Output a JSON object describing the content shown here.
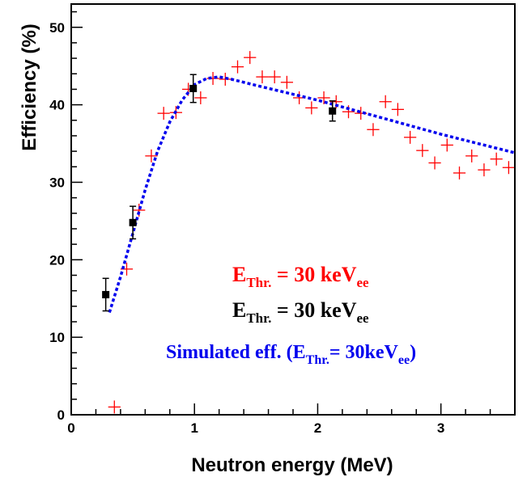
{
  "chart_data": {
    "type": "scatter",
    "xlabel": "Neutron energy (MeV)",
    "ylabel": "Efficiency (%)",
    "xlim": [
      0,
      3.6
    ],
    "ylim": [
      0,
      53
    ],
    "x_ticks": [
      "0",
      "1",
      "2",
      "3"
    ],
    "y_ticks": [
      "0",
      "10",
      "20",
      "30",
      "40",
      "50"
    ],
    "grid": false,
    "legend_position": "lower-right",
    "series": [
      {
        "legend": {
          "main": "E",
          "sub": "Thr.",
          "mid": " = 30 keV",
          "sub2": "ee"
        },
        "marker": "cross",
        "color": "#ff0000",
        "points": [
          {
            "x": 0.35,
            "y": 1.0
          },
          {
            "x": 0.45,
            "y": 18.8
          },
          {
            "x": 0.55,
            "y": 26.4
          },
          {
            "x": 0.65,
            "y": 33.4
          },
          {
            "x": 0.75,
            "y": 38.9
          },
          {
            "x": 0.85,
            "y": 39.0
          },
          {
            "x": 0.95,
            "y": 42.0
          },
          {
            "x": 1.05,
            "y": 40.9
          },
          {
            "x": 1.15,
            "y": 43.4
          },
          {
            "x": 1.25,
            "y": 43.3
          },
          {
            "x": 1.35,
            "y": 44.9
          },
          {
            "x": 1.45,
            "y": 46.1
          },
          {
            "x": 1.55,
            "y": 43.6
          },
          {
            "x": 1.65,
            "y": 43.6
          },
          {
            "x": 1.75,
            "y": 42.9
          },
          {
            "x": 1.85,
            "y": 40.9
          },
          {
            "x": 1.95,
            "y": 39.6
          },
          {
            "x": 2.05,
            "y": 40.9
          },
          {
            "x": 2.15,
            "y": 40.4
          },
          {
            "x": 2.25,
            "y": 39.1
          },
          {
            "x": 2.35,
            "y": 38.9
          },
          {
            "x": 2.45,
            "y": 36.8
          },
          {
            "x": 2.55,
            "y": 40.4
          },
          {
            "x": 2.65,
            "y": 39.4
          },
          {
            "x": 2.75,
            "y": 35.8
          },
          {
            "x": 2.85,
            "y": 34.1
          },
          {
            "x": 2.95,
            "y": 32.5
          },
          {
            "x": 3.05,
            "y": 34.8
          },
          {
            "x": 3.15,
            "y": 31.2
          },
          {
            "x": 3.25,
            "y": 33.4
          },
          {
            "x": 3.35,
            "y": 31.6
          },
          {
            "x": 3.45,
            "y": 33.0
          },
          {
            "x": 3.55,
            "y": 31.9
          }
        ]
      },
      {
        "legend": {
          "main": "E",
          "sub": "Thr.",
          "mid": " = 30 keV",
          "sub2": "ee"
        },
        "marker": "square-errorbar",
        "color": "#000000",
        "points": [
          {
            "x": 0.28,
            "y": 15.5,
            "err": 2.1
          },
          {
            "x": 0.5,
            "y": 24.8,
            "err": 2.1
          },
          {
            "x": 0.99,
            "y": 42.1,
            "err": 1.8
          },
          {
            "x": 2.12,
            "y": 39.2,
            "err": 1.3
          }
        ]
      },
      {
        "legend": {
          "main": "Simulated eff. (E",
          "sub": "Thr.",
          "mid": "= 30keV",
          "sub2": "ee",
          "end": ")"
        },
        "marker": "dashed-line",
        "color": "#0000ee",
        "points": [
          {
            "x": 0.31,
            "y": 13.2
          },
          {
            "x": 0.4,
            "y": 17.8
          },
          {
            "x": 0.5,
            "y": 23.4
          },
          {
            "x": 0.6,
            "y": 29.0
          },
          {
            "x": 0.7,
            "y": 34.0
          },
          {
            "x": 0.8,
            "y": 37.8
          },
          {
            "x": 0.9,
            "y": 40.6
          },
          {
            "x": 1.0,
            "y": 42.6
          },
          {
            "x": 1.1,
            "y": 43.4
          },
          {
            "x": 1.2,
            "y": 43.6
          },
          {
            "x": 1.3,
            "y": 43.3
          },
          {
            "x": 1.5,
            "y": 42.5
          },
          {
            "x": 2.0,
            "y": 40.6
          },
          {
            "x": 2.5,
            "y": 38.4
          },
          {
            "x": 3.0,
            "y": 36.2
          },
          {
            "x": 3.6,
            "y": 33.8
          }
        ]
      }
    ]
  }
}
